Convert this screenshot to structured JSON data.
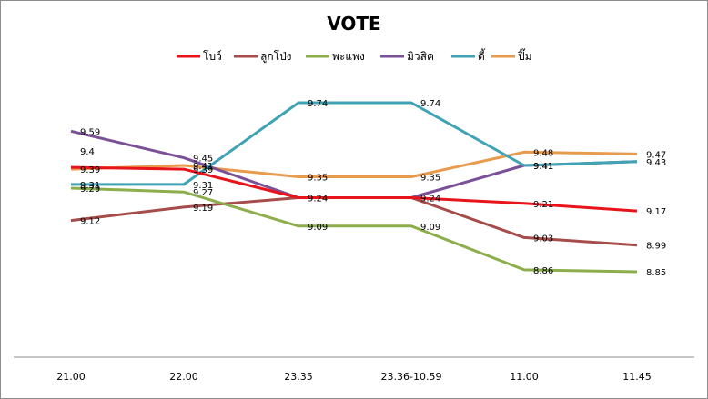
{
  "chart_data": {
    "type": "line",
    "title": "VOTE",
    "xlabel": "",
    "ylabel": "",
    "categories": [
      "21.00",
      "22.00",
      "23.35",
      "23.36-10.59",
      "11.00",
      "11.45"
    ],
    "ylim": [
      8.3,
      9.9
    ],
    "grid": false,
    "legend_position": "top",
    "series": [
      {
        "name": "โบว์",
        "color": "#e8141b",
        "values": [
          9.4,
          9.39,
          9.24,
          9.24,
          9.21,
          9.17
        ]
      },
      {
        "name": "ลูกโป่ง",
        "color": "#a64d4b",
        "values": [
          9.12,
          9.19,
          9.24,
          9.24,
          9.03,
          8.99
        ]
      },
      {
        "name": "พะแพง",
        "color": "#8caf4c",
        "values": [
          9.29,
          9.27,
          9.09,
          9.09,
          8.86,
          8.85
        ]
      },
      {
        "name": "มิวสิค",
        "color": "#7a5096",
        "values": [
          9.59,
          9.45,
          9.24,
          9.24,
          9.41,
          9.43
        ]
      },
      {
        "name": "ดี้",
        "color": "#3fa3b5",
        "values": [
          9.31,
          9.31,
          9.74,
          9.74,
          9.41,
          9.43
        ]
      },
      {
        "name": "ปิ๊ม",
        "color": "#e89a4d",
        "values": [
          9.39,
          9.41,
          9.35,
          9.35,
          9.48,
          9.47
        ]
      }
    ],
    "data_labels": [
      {
        "series": 3,
        "index": 0,
        "text": "9.59"
      },
      {
        "series": 0,
        "index": 0,
        "text": "9.4"
      },
      {
        "series": 5,
        "index": 0,
        "text": "9.39"
      },
      {
        "series": 4,
        "index": 0,
        "text": "9.31"
      },
      {
        "series": 2,
        "index": 0,
        "text": "9.29"
      },
      {
        "series": 1,
        "index": 0,
        "text": "9.12"
      },
      {
        "series": 3,
        "index": 1,
        "text": "9.45"
      },
      {
        "series": 5,
        "index": 1,
        "text": "9.41"
      },
      {
        "series": 0,
        "index": 1,
        "text": "9.39"
      },
      {
        "series": 4,
        "index": 1,
        "text": "9.31"
      },
      {
        "series": 2,
        "index": 1,
        "text": "9.27"
      },
      {
        "series": 1,
        "index": 1,
        "text": "9.19"
      },
      {
        "series": 4,
        "index": 2,
        "text": "9.74"
      },
      {
        "series": 5,
        "index": 2,
        "text": "9.35"
      },
      {
        "series": 3,
        "index": 2,
        "text": "9.24"
      },
      {
        "series": 2,
        "index": 2,
        "text": "9.09"
      },
      {
        "series": 4,
        "index": 3,
        "text": "9.74"
      },
      {
        "series": 5,
        "index": 3,
        "text": "9.35"
      },
      {
        "series": 3,
        "index": 3,
        "text": "9.24"
      },
      {
        "series": 2,
        "index": 3,
        "text": "9.09"
      },
      {
        "series": 5,
        "index": 4,
        "text": "9.48"
      },
      {
        "series": 4,
        "index": 4,
        "text": "9.41"
      },
      {
        "series": 3,
        "index": 4,
        "text": "9.41"
      },
      {
        "series": 0,
        "index": 4,
        "text": "9.21"
      },
      {
        "series": 1,
        "index": 4,
        "text": "9.03"
      },
      {
        "series": 2,
        "index": 4,
        "text": "8.86"
      },
      {
        "series": 5,
        "index": 5,
        "text": "9.47"
      },
      {
        "series": 3,
        "index": 5,
        "text": "9.43"
      },
      {
        "series": 0,
        "index": 5,
        "text": "9.17"
      },
      {
        "series": 1,
        "index": 5,
        "text": "8.99"
      },
      {
        "series": 2,
        "index": 5,
        "text": "8.85"
      }
    ]
  }
}
